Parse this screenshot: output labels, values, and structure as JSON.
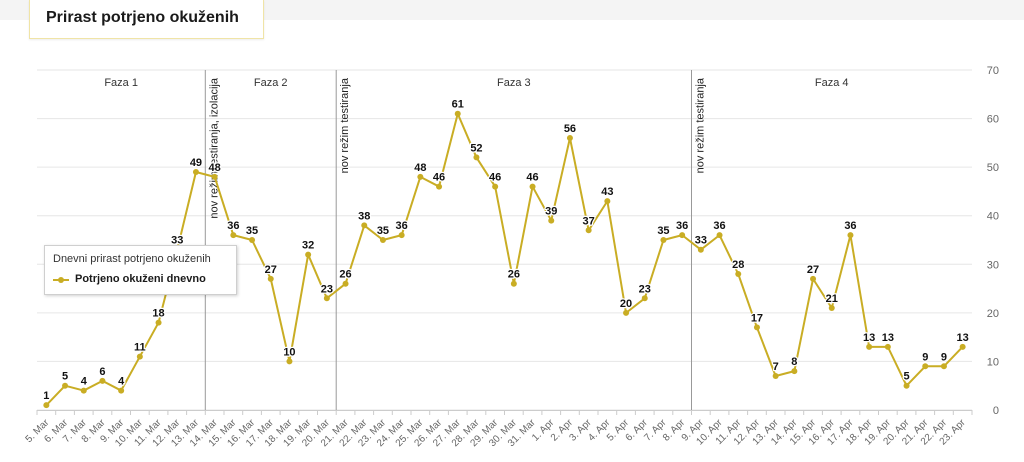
{
  "page": {
    "title": "Prirast potrjeno okuženih"
  },
  "colors": {
    "series": "#c9ad24",
    "grid": "#e6e6e6",
    "phase_line": "#999999",
    "title_border": "#f0e4a6"
  },
  "legend": {
    "title": "Dnevni prirast potrjeno okuženih",
    "item": "Potrjeno okuženi dnevno"
  },
  "chart_data": {
    "type": "line",
    "title": "Dnevni prirast potrjeno okuženih",
    "categories": [
      "5. Mar",
      "6. Mar",
      "7. Mar",
      "8. Mar",
      "9. Mar",
      "10. Mar",
      "11. Mar",
      "12. Mar",
      "13. Mar",
      "14. Mar",
      "15. Mar",
      "16. Mar",
      "17. Mar",
      "18. Mar",
      "19. Mar",
      "20. Mar",
      "21. Mar",
      "22. Mar",
      "23. Mar",
      "24. Mar",
      "25. Mar",
      "26. Mar",
      "27. Mar",
      "28. Mar",
      "29. Mar",
      "30. Mar",
      "31. Mar",
      "1. Apr",
      "2. Apr",
      "3. Apr",
      "4. Apr",
      "5. Apr",
      "6. Apr",
      "7. Apr",
      "8. Apr",
      "9. Apr",
      "10. Apr",
      "11. Apr",
      "12. Apr",
      "13. Apr",
      "14. Apr",
      "15. Apr",
      "16. Apr",
      "17. Apr",
      "18. Apr",
      "19. Apr",
      "20. Apr",
      "21. Apr",
      "22. Apr",
      "23. Apr"
    ],
    "series": [
      {
        "name": "Potrjeno okuženi dnevno",
        "values": [
          1,
          5,
          4,
          6,
          4,
          11,
          18,
          33,
          49,
          48,
          36,
          35,
          27,
          10,
          32,
          23,
          26,
          38,
          35,
          36,
          48,
          46,
          61,
          52,
          46,
          26,
          46,
          39,
          56,
          37,
          43,
          20,
          23,
          35,
          36,
          33,
          36,
          28,
          17,
          7,
          8,
          27,
          21,
          36,
          13,
          13,
          5,
          9,
          9,
          13
        ]
      }
    ],
    "ylim": [
      0,
      70
    ],
    "yticks": [
      "0",
      "10",
      "20",
      "30",
      "40",
      "50",
      "60",
      "70"
    ],
    "grid": true,
    "legend_position": "left-middle",
    "phases": [
      {
        "label": "Faza 1",
        "start": 0,
        "end": 9
      },
      {
        "label": "Faza 2",
        "start": 9,
        "end": 16
      },
      {
        "label": "Faza 3",
        "start": 16,
        "end": 35
      },
      {
        "label": "Faza 4",
        "start": 35,
        "end": 50
      }
    ],
    "markers": [
      {
        "at": 9,
        "label": "nov režim testiranja, izolacija"
      },
      {
        "at": 16,
        "label": "nov režim testiranja"
      },
      {
        "at": 35,
        "label": "nov režim testiranja"
      }
    ]
  }
}
